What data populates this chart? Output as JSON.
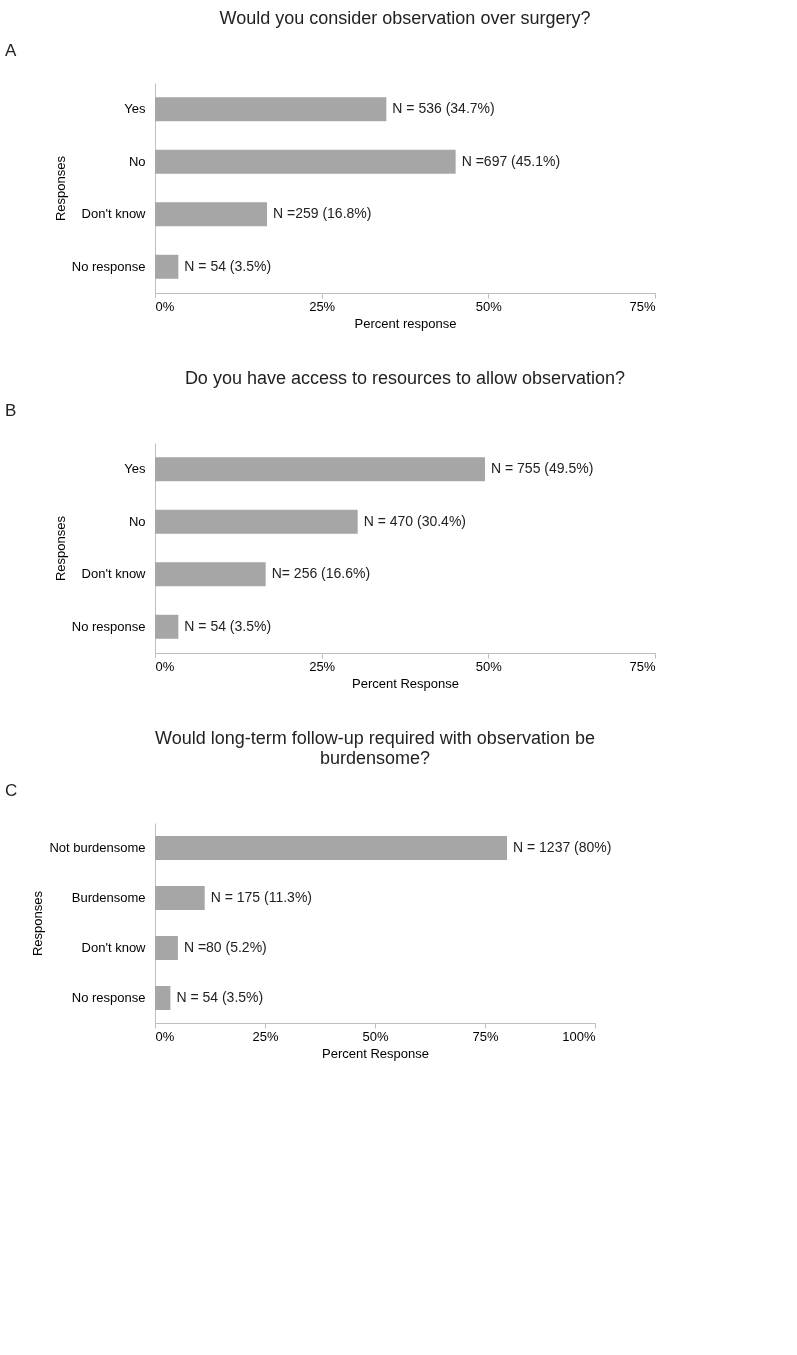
{
  "chart_data": [
    {
      "type": "bar",
      "orientation": "horizontal",
      "title": "Would you consider observation over surgery?",
      "annotations": [
        "A"
      ],
      "xlabel": "Percent response",
      "ylabel": "Responses",
      "categories": [
        "Yes",
        "No",
        "Don't know",
        "No response"
      ],
      "values": [
        34.7,
        45.1,
        16.8,
        3.5
      ],
      "value_labels": [
        "N = 536 (34.7%)",
        "N =697 (45.1%)",
        "N =259 (16.8%)",
        "N = 54 (3.5%)"
      ],
      "color": "#a6a6a6",
      "xlim": [
        0,
        75
      ],
      "xticks": [
        {
          "value": 0,
          "label": "0%"
        },
        {
          "value": 25,
          "label": "25%"
        },
        {
          "value": 50,
          "label": "50%"
        },
        {
          "value": 75,
          "label": "75%"
        }
      ],
      "grid": false
    },
    {
      "type": "bar",
      "orientation": "horizontal",
      "title": "Do you have access to resources to allow observation?",
      "annotations": [
        "B"
      ],
      "xlabel": "Percent Response",
      "ylabel": "Responses",
      "categories": [
        "Yes",
        "No",
        "Don't know",
        "No response"
      ],
      "values": [
        49.5,
        30.4,
        16.6,
        3.5
      ],
      "value_labels": [
        "N = 755 (49.5%)",
        "N = 470 (30.4%)",
        "N= 256 (16.6%)",
        "N = 54 (3.5%)"
      ],
      "color": "#a6a6a6",
      "xlim": [
        0,
        75
      ],
      "xticks": [
        {
          "value": 0,
          "label": "0%"
        },
        {
          "value": 25,
          "label": "25%"
        },
        {
          "value": 50,
          "label": "50%"
        },
        {
          "value": 75,
          "label": "75%"
        }
      ],
      "grid": false
    },
    {
      "type": "bar",
      "orientation": "horizontal",
      "title": "Would long-term follow-up required with observation be burdensome?",
      "annotations": [
        "C"
      ],
      "xlabel": "Percent Response",
      "ylabel": "Responses",
      "categories": [
        "Not burdensome",
        "Burdensome",
        "Don't know",
        "No response"
      ],
      "values": [
        80,
        11.3,
        5.2,
        3.5
      ],
      "value_labels": [
        "N = 1237 (80%)",
        "N = 175 (11.3%)",
        "N =80 (5.2%)",
        "N = 54 (3.5%)"
      ],
      "color": "#a6a6a6",
      "xlim": [
        0,
        100
      ],
      "xticks": [
        {
          "value": 0,
          "label": "0%"
        },
        {
          "value": 25,
          "label": "25%"
        },
        {
          "value": 50,
          "label": "50%"
        },
        {
          "value": 75,
          "label": "75%"
        },
        {
          "value": 100,
          "label": "100%"
        }
      ],
      "grid": false
    }
  ]
}
